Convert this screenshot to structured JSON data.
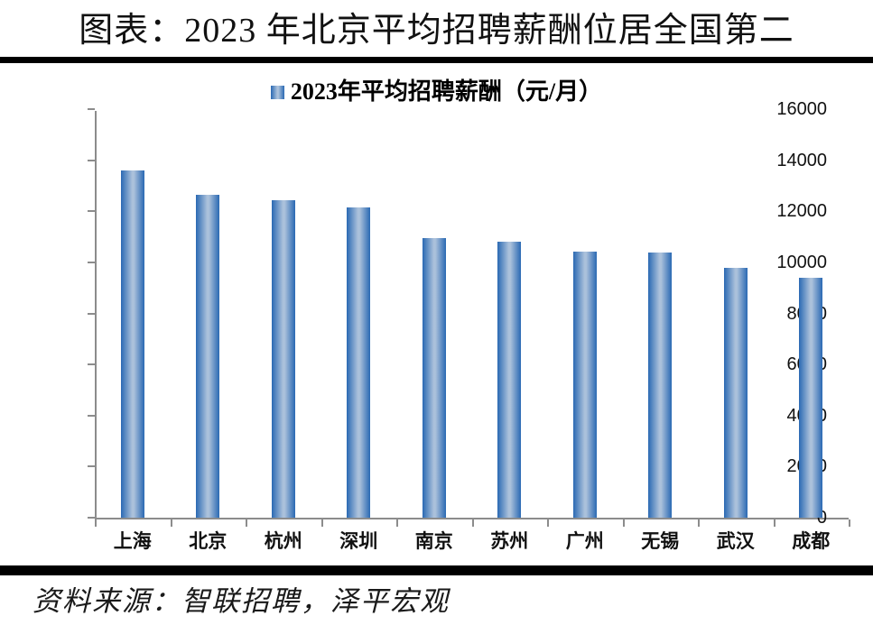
{
  "title": "图表：2023 年北京平均招聘薪酬位居全国第二",
  "source": "资料来源：智联招聘，泽平宏观",
  "chart_data": {
    "type": "bar",
    "legend": "2023年平均招聘薪酬（元/月）",
    "legend_position": "top-center",
    "categories": [
      "上海",
      "北京",
      "杭州",
      "深圳",
      "南京",
      "苏州",
      "广州",
      "无锡",
      "武汉",
      "成都"
    ],
    "values": [
      13600,
      12650,
      12450,
      12150,
      10950,
      10800,
      10420,
      10400,
      9800,
      9400
    ],
    "xlabel": "",
    "ylabel": "",
    "ylim": [
      0,
      16000
    ],
    "yticks": [
      0,
      2000,
      4000,
      6000,
      8000,
      10000,
      12000,
      14000,
      16000
    ],
    "grid": false,
    "colors": {
      "bar_edge": "#2a69b3",
      "bar_center": "#abc1db",
      "axis": "#8c8c8c",
      "text": "#111111",
      "rule": "#000000"
    }
  }
}
